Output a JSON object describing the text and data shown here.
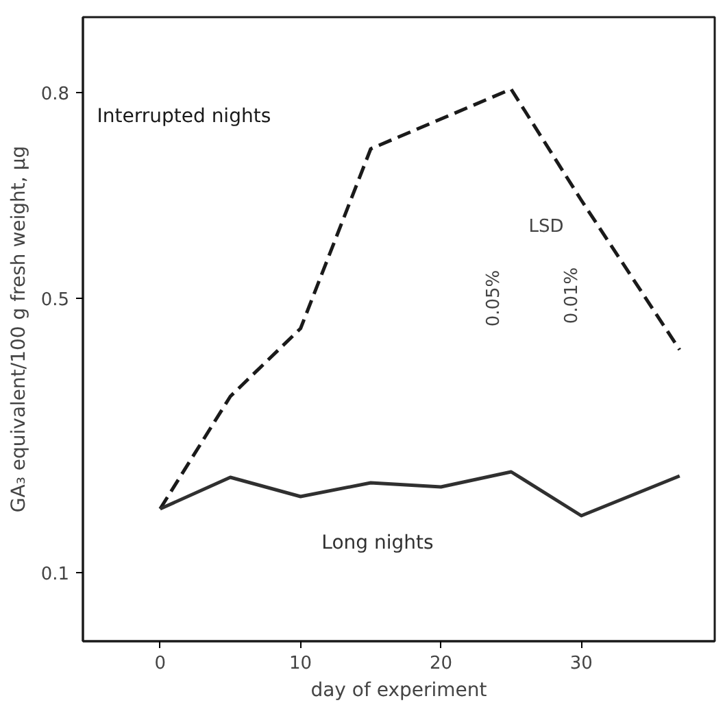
{
  "chart_data": {
    "type": "line",
    "xlabel": "day of experiment",
    "ylabel": "GA₃ equivalent/100 g fresh weight, µg",
    "xlim": [
      -5.5,
      39.5
    ],
    "xticks": [
      0,
      10,
      20,
      30
    ],
    "ylim": [
      0,
      0.91
    ],
    "yticks": [
      0.1,
      0.5,
      0.8
    ],
    "grid": false,
    "marker": "none",
    "series": [
      {
        "name": "Interrupted nights",
        "color": "#1a1a1a",
        "line_style": "dashed",
        "x": [
          0,
          5,
          10,
          15,
          25,
          30,
          37
        ],
        "values": [
          0.193,
          0.357,
          0.456,
          0.718,
          0.805,
          0.643,
          0.425
        ]
      },
      {
        "name": "Long nights",
        "color": "#303030",
        "line_style": "solid",
        "x": [
          0,
          5,
          10,
          15,
          20,
          25,
          30,
          37
        ],
        "values": [
          0.193,
          0.239,
          0.211,
          0.231,
          0.225,
          0.247,
          0.183,
          0.241
        ]
      }
    ],
    "annotations": [
      "LSD",
      "0.05%",
      "0.01%"
    ]
  }
}
